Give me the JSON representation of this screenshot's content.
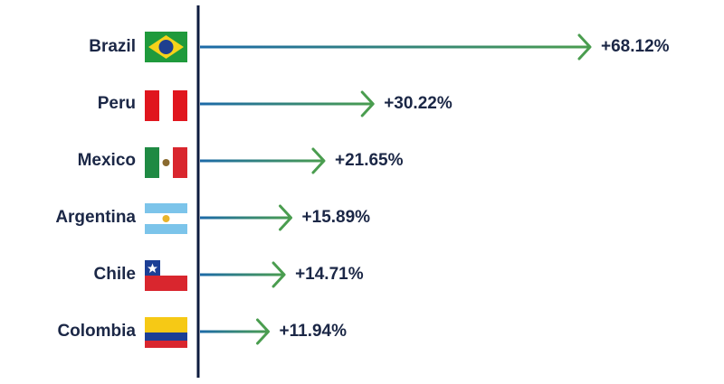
{
  "chart_data": {
    "type": "bar",
    "orientation": "horizontal",
    "categories": [
      "Brazil",
      "Peru",
      "Mexico",
      "Argentina",
      "Chile",
      "Colombia"
    ],
    "values": [
      68.12,
      30.22,
      21.65,
      15.89,
      14.71,
      11.94
    ],
    "value_labels": [
      "+68.12%",
      "+30.22%",
      "+21.65%",
      "+15.89%",
      "+14.71%",
      "+11.94%"
    ],
    "color": "#4a9d4f"
  }
}
